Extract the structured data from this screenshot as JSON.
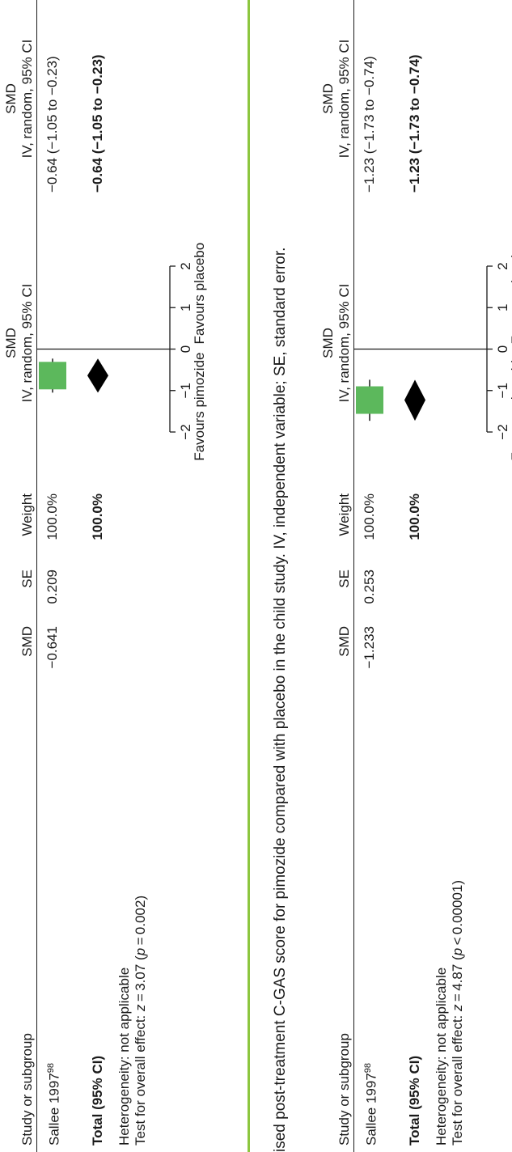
{
  "caption": "ised post-treatment C-GAS score for pimozide compared with placebo in the child study. IV, independent variable; SE, standard error.",
  "columns": {
    "study": "Study or subgroup",
    "smd": "SMD",
    "se": "SE",
    "weight": "Weight",
    "plot_head1": "SMD",
    "plot_head2": "IV, random, 95% CI",
    "ci_head1": "SMD",
    "ci_head2": "IV, random, 95% CI"
  },
  "colors": {
    "study_marker": "#5cb85c",
    "diamond": "#000000",
    "separator": "#8cc63f"
  },
  "chart_data": [
    {
      "type": "forest",
      "axis": {
        "min": -2,
        "max": 2,
        "ticks": [
          "−2",
          "−1",
          "0",
          "1",
          "2"
        ],
        "left_label": "Favours pimozide",
        "right_label": "Favours placebo"
      },
      "study": {
        "name": "Sallee 1997",
        "ref": "98",
        "smd": "−0.641",
        "se": "0.209",
        "weight": "100.0%",
        "ci_text": "−0.64 (−1.05 to −0.23)",
        "estimate": -0.64,
        "lower": -1.05,
        "upper": -0.23
      },
      "total": {
        "label": "Total (95% CI)",
        "weight": "100.0%",
        "ci_text": "−0.64 (−1.05 to −0.23)",
        "estimate": -0.64,
        "lower": -1.05,
        "upper": -0.23
      },
      "heterogeneity": "Heterogeneity: not applicable",
      "overall_prefix": "Test for overall effect: ",
      "overall_z": "z",
      "overall_mid": " = 3.07 (",
      "overall_p": "p",
      "overall_suffix": " = 0.002)"
    },
    {
      "type": "forest",
      "axis": {
        "min": -2,
        "max": 2,
        "ticks": [
          "−2",
          "−1",
          "0",
          "1",
          "2"
        ],
        "left_label": "Favours pimozide",
        "right_label": "Favours placebo"
      },
      "study": {
        "name": "Sallee 1997",
        "ref": "98",
        "smd": "−1.233",
        "se": "0.253",
        "weight": "100.0%",
        "ci_text": "−1.23 (−1.73 to −0.74)",
        "estimate": -1.23,
        "lower": -1.73,
        "upper": -0.74
      },
      "total": {
        "label": "Total (95% CI)",
        "weight": "100.0%",
        "ci_text": "−1.23 (−1.73 to −0.74)",
        "estimate": -1.23,
        "lower": -1.73,
        "upper": -0.74
      },
      "heterogeneity": "Heterogeneity: not applicable",
      "overall_prefix": "Test for overall effect: ",
      "overall_z": "z",
      "overall_mid": " = 4.87 (",
      "overall_p": "p",
      "overall_suffix": " < 0.00001)"
    }
  ]
}
